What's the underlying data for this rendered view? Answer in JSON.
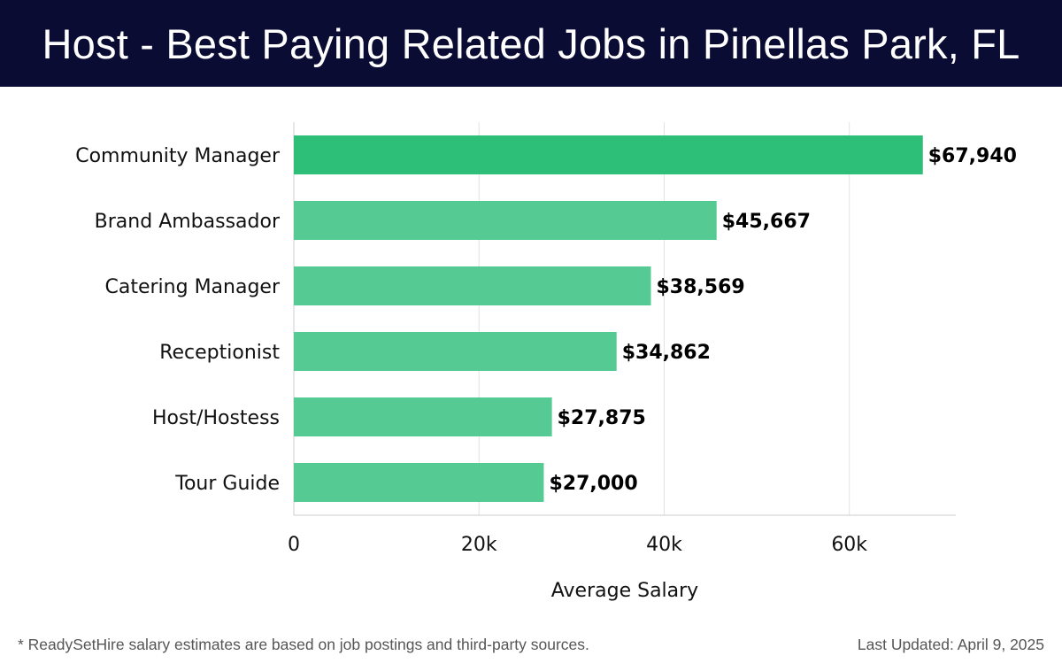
{
  "header": {
    "title": "Host - Best Paying Related Jobs in Pinellas Park, FL"
  },
  "chart_data": {
    "type": "bar",
    "orientation": "horizontal",
    "title": "Host - Best Paying Related Jobs in Pinellas Park, FL",
    "xlabel": "Average Salary",
    "ylabel": "",
    "categories": [
      "Community Manager",
      "Brand Ambassador",
      "Catering Manager",
      "Receptionist",
      "Host/Hostess",
      "Tour Guide"
    ],
    "values": [
      67940,
      45667,
      38569,
      34862,
      27875,
      27000
    ],
    "value_labels": [
      "$67,940",
      "$45,667",
      "$38,569",
      "$34,862",
      "$27,875",
      "$27,000"
    ],
    "xlim": [
      0,
      71500
    ],
    "xticks": [
      0,
      20000,
      40000,
      60000
    ],
    "xtick_labels": [
      "0",
      "20k",
      "40k",
      "60k"
    ],
    "grid": true,
    "colors": {
      "top_bar": "#2dbe78",
      "bar": "#55cb93",
      "grid": "#e2e2e2",
      "axis": "#cccccc"
    }
  },
  "footer": {
    "note": "* ReadySetHire salary estimates are based on job postings and third-party sources.",
    "updated": "Last Updated: April 9, 2025"
  }
}
